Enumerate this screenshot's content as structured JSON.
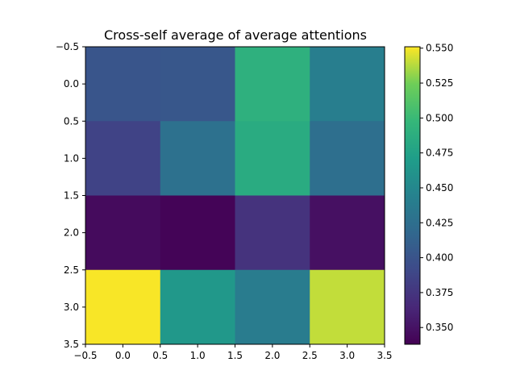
{
  "chart_data": {
    "type": "heatmap",
    "title": "Cross-self average of average attentions",
    "xlabel": "",
    "ylabel": "",
    "xlim": [
      -0.5,
      3.5
    ],
    "ylim": [
      3.5,
      -0.5
    ],
    "x_ticks": [
      "−0.5",
      "0.0",
      "0.5",
      "1.0",
      "1.5",
      "2.0",
      "2.5",
      "3.0",
      "3.5"
    ],
    "y_ticks": [
      "−0.5",
      "0.0",
      "0.5",
      "1.0",
      "1.5",
      "2.0",
      "2.5",
      "3.0",
      "3.5"
    ],
    "values": [
      [
        0.401,
        0.403,
        0.49,
        0.44
      ],
      [
        0.386,
        0.427,
        0.485,
        0.425
      ],
      [
        0.345,
        0.34,
        0.373,
        0.348
      ],
      [
        0.55,
        0.465,
        0.438,
        0.54
      ]
    ],
    "colormap": "viridis",
    "colorbar": {
      "vmin": 0.338,
      "vmax": 0.551,
      "ticks": [
        0.35,
        0.375,
        0.4,
        0.425,
        0.45,
        0.475,
        0.5,
        0.525,
        0.55
      ],
      "tick_labels": [
        "0.350",
        "0.375",
        "0.400",
        "0.425",
        "0.450",
        "0.475",
        "0.500",
        "0.525",
        "0.550"
      ]
    },
    "grid": false,
    "legend": "none"
  }
}
